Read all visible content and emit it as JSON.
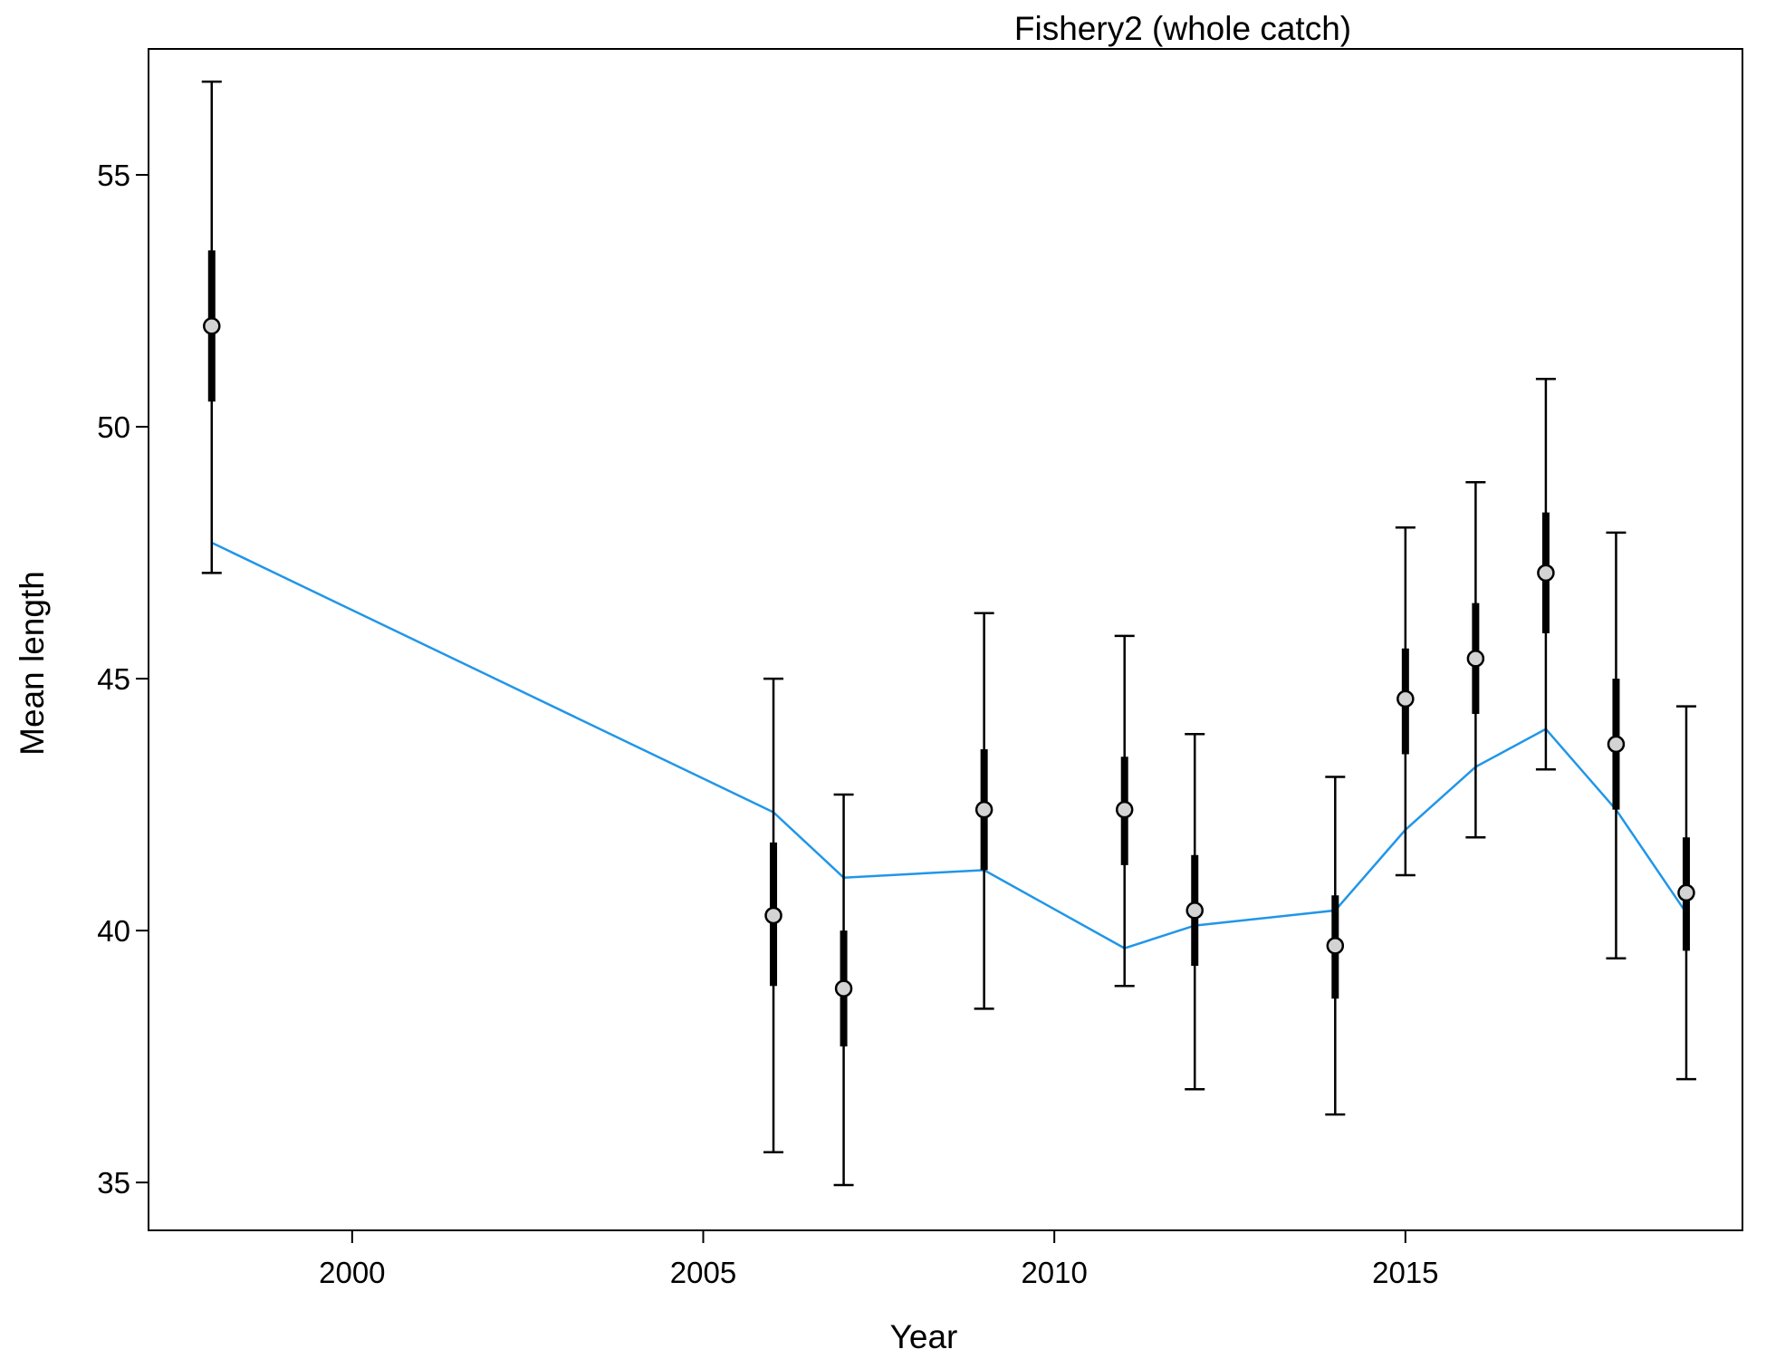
{
  "chart_data": {
    "type": "scatter",
    "title": "Fishery2 (whole catch)",
    "xlabel": "Year",
    "ylabel": "Mean length",
    "xlim": [
      1997.1,
      2019.8
    ],
    "ylim": [
      34.05,
      57.5
    ],
    "x_ticks": [
      2000,
      2005,
      2010,
      2015
    ],
    "y_ticks": [
      35,
      40,
      45,
      50,
      55
    ],
    "grid": false,
    "series": [
      {
        "type": "points-with-intervals",
        "colors": {
          "fill": "#d3d3d3",
          "stroke": "#000000"
        },
        "points": [
          {
            "x": 1998,
            "y": 52.0,
            "inner_low": 50.5,
            "inner_high": 53.5,
            "outer_low": 47.1,
            "outer_high": 56.85
          },
          {
            "x": 2006,
            "y": 40.3,
            "inner_low": 38.9,
            "inner_high": 41.75,
            "outer_low": 35.6,
            "outer_high": 45.0
          },
          {
            "x": 2007,
            "y": 38.85,
            "inner_low": 37.7,
            "inner_high": 40.0,
            "outer_low": 34.95,
            "outer_high": 42.7
          },
          {
            "x": 2009,
            "y": 42.4,
            "inner_low": 41.2,
            "inner_high": 43.6,
            "outer_low": 38.45,
            "outer_high": 46.3
          },
          {
            "x": 2011,
            "y": 42.4,
            "inner_low": 41.3,
            "inner_high": 43.45,
            "outer_low": 38.9,
            "outer_high": 45.85
          },
          {
            "x": 2012,
            "y": 40.4,
            "inner_low": 39.3,
            "inner_high": 41.5,
            "outer_low": 36.85,
            "outer_high": 43.9
          },
          {
            "x": 2014,
            "y": 39.7,
            "inner_low": 38.65,
            "inner_high": 40.7,
            "outer_low": 36.35,
            "outer_high": 43.05
          },
          {
            "x": 2015,
            "y": 44.6,
            "inner_low": 43.5,
            "inner_high": 45.6,
            "outer_low": 41.1,
            "outer_high": 48.0
          },
          {
            "x": 2016,
            "y": 45.4,
            "inner_low": 44.3,
            "inner_high": 46.5,
            "outer_low": 41.85,
            "outer_high": 48.9
          },
          {
            "x": 2017,
            "y": 47.1,
            "inner_low": 45.9,
            "inner_high": 48.3,
            "outer_low": 43.2,
            "outer_high": 50.95
          },
          {
            "x": 2018,
            "y": 43.7,
            "inner_low": 42.4,
            "inner_high": 45.0,
            "outer_low": 39.45,
            "outer_high": 47.9
          },
          {
            "x": 2019,
            "y": 40.75,
            "inner_low": 39.6,
            "inner_high": 41.85,
            "outer_low": 37.05,
            "outer_high": 44.45
          }
        ]
      },
      {
        "type": "line",
        "color": "#2196e8",
        "x": [
          1998,
          2006,
          2007,
          2009,
          2011,
          2012,
          2014,
          2015,
          2016,
          2017,
          2018,
          2019
        ],
        "y": [
          47.7,
          42.35,
          41.05,
          41.2,
          39.65,
          40.1,
          40.4,
          42.0,
          43.25,
          44.0,
          42.4,
          40.35
        ]
      }
    ]
  }
}
